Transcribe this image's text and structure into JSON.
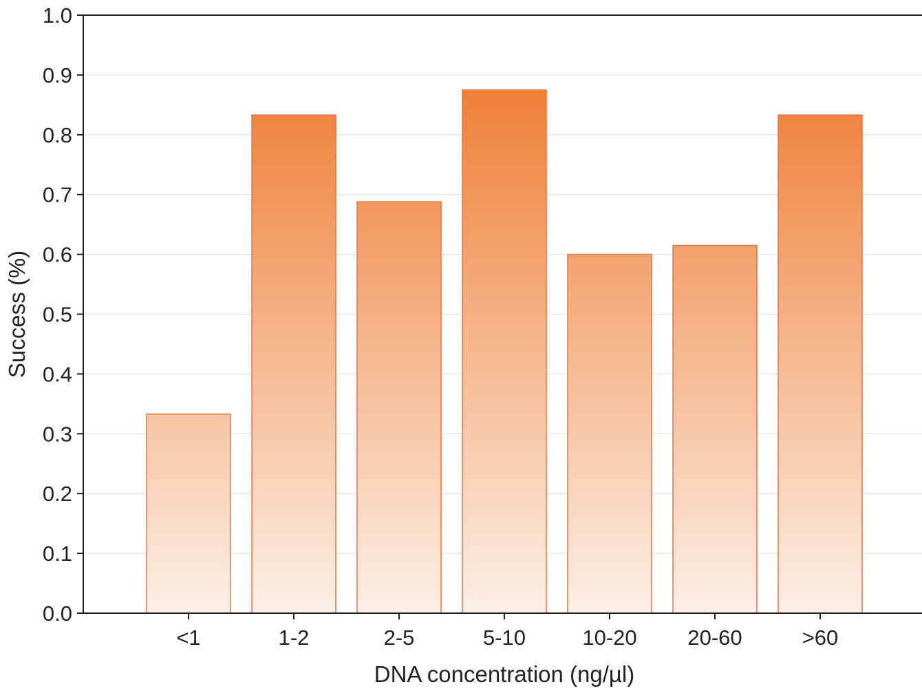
{
  "chart_data": {
    "type": "bar",
    "title": "",
    "xlabel": "DNA concentration (ng/µl)",
    "ylabel": "Success (%)",
    "categories": [
      "<1",
      "1-2",
      "2-5",
      "5-10",
      "10-20",
      "20-60",
      ">60"
    ],
    "values": [
      0.333,
      0.833,
      0.688,
      0.875,
      0.6,
      0.615,
      0.833
    ],
    "ylim": [
      0,
      1.0
    ],
    "yticks": [
      "0.0",
      "0.1",
      "0.2",
      "0.3",
      "0.4",
      "0.5",
      "0.6",
      "0.7",
      "0.8",
      "0.9",
      "1.0"
    ],
    "grid": true,
    "legend": "none",
    "colors": {
      "bar_top": "#ec6f1e",
      "bar_bottom": "#fdf0e6",
      "bar_edge": "#e4744a",
      "grid": "#e6e6e6",
      "axis": "#222222"
    }
  }
}
